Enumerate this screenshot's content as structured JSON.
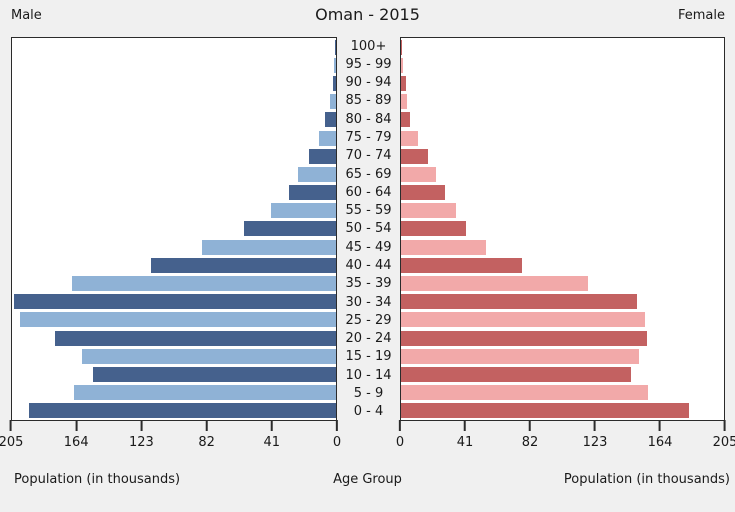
{
  "header": {
    "male": "Male",
    "title": "Oman - 2015",
    "female": "Female"
  },
  "footer": {
    "male_axis_label": "Population (in thousands)",
    "center_axis_label": "Age Group",
    "female_axis_label": "Population (in thousands)"
  },
  "axes": {
    "male_ticks": [
      "205",
      "164",
      "123",
      "82",
      "41",
      "0"
    ],
    "female_ticks": [
      "0",
      "41",
      "82",
      "123",
      "164",
      "205"
    ]
  },
  "colors": {
    "male_dark": "#45618d",
    "male_light": "#8fb2d6",
    "female_dark": "#c36161",
    "female_light": "#f2a9a9",
    "axis": "#2b2b2b",
    "panel_bg": "#ffffff",
    "figure_bg": "#f0f0f0"
  },
  "chart_data": {
    "type": "bar",
    "subtype": "population-pyramid",
    "title": "Oman - 2015",
    "categories": [
      "0 - 4",
      "5 - 9",
      "10 - 14",
      "15 - 19",
      "20 - 24",
      "25 - 29",
      "30 - 34",
      "35 - 39",
      "40 - 44",
      "45 - 49",
      "50 - 54",
      "55 - 59",
      "60 - 64",
      "65 - 69",
      "70 - 74",
      "75 - 79",
      "80 - 84",
      "85 - 89",
      "90 - 94",
      "95 - 99",
      "100+"
    ],
    "series": [
      {
        "name": "Male",
        "values": [
          194,
          166,
          154,
          161,
          178,
          200,
          204,
          167,
          117,
          85,
          58,
          41,
          30,
          24,
          17,
          11,
          7,
          4,
          2,
          1,
          0.5
        ]
      },
      {
        "name": "Female",
        "values": [
          183,
          157,
          146,
          151,
          156,
          155,
          150,
          119,
          77,
          54,
          41,
          35,
          28,
          22,
          17,
          11,
          6,
          4,
          3,
          1,
          0.5
        ]
      }
    ],
    "xlabel": "Population (in thousands)",
    "ylabel": "Age Group",
    "xlim": [
      0,
      205
    ],
    "x_ticks": [
      0,
      41,
      82,
      123,
      164,
      205
    ],
    "unit": "thousands",
    "legend_position": "top-corners",
    "grid": false
  }
}
